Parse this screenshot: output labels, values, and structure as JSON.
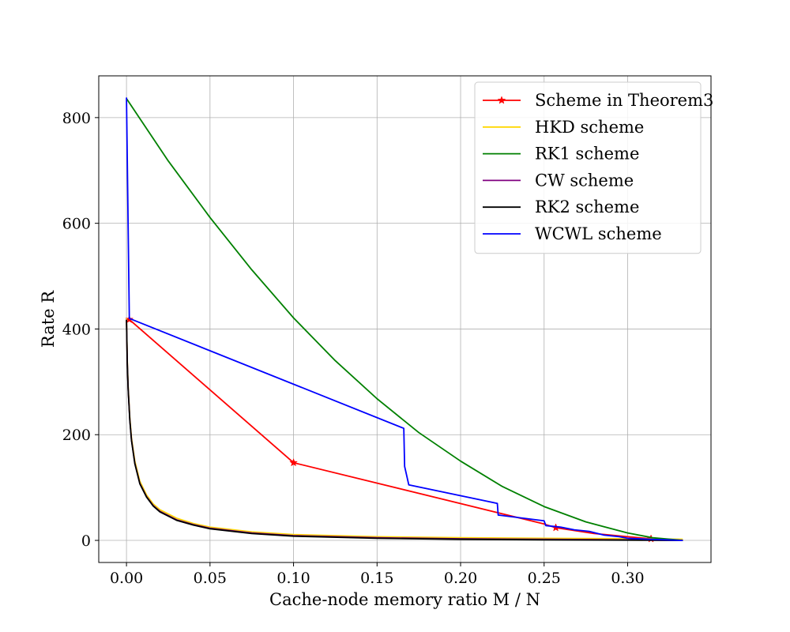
{
  "chart_data": {
    "type": "line",
    "title": "",
    "xlabel": "Cache-node memory ratio M / N",
    "ylabel": "Rate R",
    "xlim": [
      -0.0166,
      0.3499
    ],
    "ylim": [
      -41.8,
      879
    ],
    "grid": true,
    "legend_position": "top-right",
    "x_ticks": [
      0.0,
      0.05,
      0.1,
      0.15,
      0.2,
      0.25,
      0.3
    ],
    "x_tick_labels": [
      "0.00",
      "0.05",
      "0.10",
      "0.15",
      "0.20",
      "0.25",
      "0.30"
    ],
    "y_ticks": [
      0,
      200,
      400,
      600,
      800
    ],
    "y_tick_labels": [
      "0",
      "200",
      "400",
      "600",
      "800"
    ],
    "series": [
      {
        "name": "Scheme in Theorem3",
        "color": "#ff0000",
        "marker": "star",
        "points": [
          [
            0.0017,
            418
          ],
          [
            0.1,
            147
          ],
          [
            0.25,
            31
          ],
          [
            0.257,
            24
          ],
          [
            0.28,
            13
          ],
          [
            0.3,
            7
          ],
          [
            0.314,
            3
          ],
          [
            0.333,
            0
          ]
        ],
        "marked": [
          [
            0.0017,
            418
          ],
          [
            0.1,
            147
          ],
          [
            0.257,
            24
          ],
          [
            0.314,
            3
          ]
        ]
      },
      {
        "name": "HKD scheme",
        "color": "#ffd700",
        "points": [
          [
            0.0,
            420
          ],
          [
            0.0005,
            338
          ],
          [
            0.001,
            291
          ],
          [
            0.002,
            232
          ],
          [
            0.003,
            194
          ],
          [
            0.005,
            150
          ],
          [
            0.008,
            112
          ],
          [
            0.012,
            86
          ],
          [
            0.016,
            69
          ],
          [
            0.02,
            58
          ],
          [
            0.03,
            42
          ],
          [
            0.04,
            32
          ],
          [
            0.05,
            25
          ],
          [
            0.075,
            16
          ],
          [
            0.1,
            11
          ],
          [
            0.15,
            7
          ],
          [
            0.2,
            5
          ],
          [
            0.25,
            4
          ],
          [
            0.3,
            3
          ],
          [
            0.333,
            2
          ]
        ]
      },
      {
        "name": "RK1 scheme",
        "color": "#008000",
        "points": [
          [
            0.0,
            836
          ],
          [
            0.025,
            718
          ],
          [
            0.05,
            611
          ],
          [
            0.075,
            512
          ],
          [
            0.1,
            421
          ],
          [
            0.125,
            340
          ],
          [
            0.15,
            268
          ],
          [
            0.175,
            204
          ],
          [
            0.2,
            150
          ],
          [
            0.225,
            102
          ],
          [
            0.25,
            64
          ],
          [
            0.275,
            35
          ],
          [
            0.3,
            14
          ],
          [
            0.315,
            5
          ],
          [
            0.333,
            0
          ]
        ]
      },
      {
        "name": "CW scheme",
        "color": "#800080",
        "points": [
          [
            0.0,
            418
          ],
          [
            0.0005,
            334
          ],
          [
            0.001,
            287
          ],
          [
            0.002,
            228
          ],
          [
            0.003,
            190
          ],
          [
            0.005,
            146
          ],
          [
            0.008,
            108
          ],
          [
            0.012,
            83
          ],
          [
            0.016,
            66
          ],
          [
            0.02,
            55
          ],
          [
            0.03,
            39
          ],
          [
            0.04,
            30
          ],
          [
            0.05,
            23
          ],
          [
            0.075,
            14
          ],
          [
            0.1,
            9
          ],
          [
            0.15,
            5
          ],
          [
            0.2,
            3
          ],
          [
            0.25,
            2
          ],
          [
            0.3,
            1
          ],
          [
            0.333,
            0
          ]
        ]
      },
      {
        "name": "RK2 scheme",
        "color": "#000000",
        "points": [
          [
            0.0,
            417
          ],
          [
            0.0005,
            333
          ],
          [
            0.001,
            286
          ],
          [
            0.002,
            227
          ],
          [
            0.003,
            189
          ],
          [
            0.005,
            145
          ],
          [
            0.008,
            107
          ],
          [
            0.012,
            82
          ],
          [
            0.016,
            65
          ],
          [
            0.02,
            54
          ],
          [
            0.03,
            38
          ],
          [
            0.04,
            29
          ],
          [
            0.05,
            22
          ],
          [
            0.075,
            13
          ],
          [
            0.1,
            8
          ],
          [
            0.15,
            4
          ],
          [
            0.2,
            2
          ],
          [
            0.25,
            1
          ],
          [
            0.3,
            0.5
          ],
          [
            0.333,
            0
          ]
        ]
      },
      {
        "name": "WCWL scheme",
        "color": "#0000ff",
        "points": [
          [
            0.0,
            838
          ],
          [
            0.0017,
            420
          ],
          [
            0.166,
            212
          ],
          [
            0.1665,
            140
          ],
          [
            0.169,
            105
          ],
          [
            0.222,
            70
          ],
          [
            0.2225,
            48
          ],
          [
            0.25,
            37
          ],
          [
            0.251,
            28
          ],
          [
            0.26,
            25
          ],
          [
            0.268,
            20
          ],
          [
            0.277,
            17
          ],
          [
            0.286,
            10
          ],
          [
            0.295,
            7
          ],
          [
            0.3,
            4
          ],
          [
            0.314,
            2
          ],
          [
            0.333,
            0
          ]
        ]
      }
    ]
  }
}
